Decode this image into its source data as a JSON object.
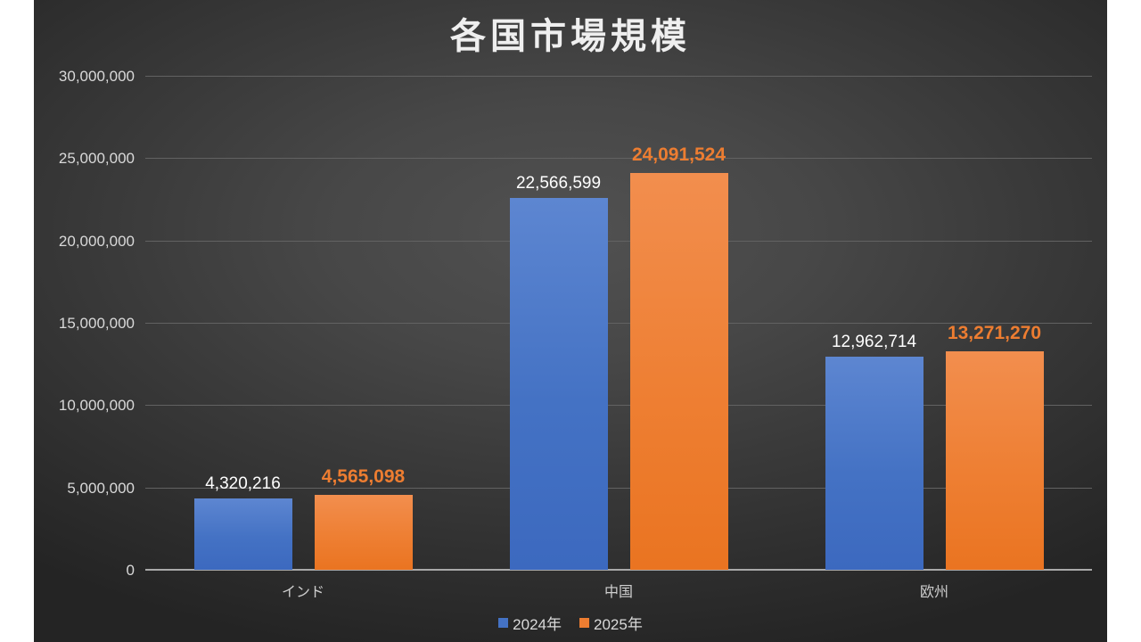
{
  "chart_data": {
    "type": "bar",
    "title": "各国市場規模",
    "categories": [
      "インド",
      "中国",
      "欧州"
    ],
    "series": [
      {
        "name": "2024年",
        "values": [
          4320216,
          22566599,
          12962714
        ],
        "value_labels": [
          "4,320,216",
          "22,566,599",
          "12,962,714"
        ],
        "color": "#4472c4",
        "label_color": "#ffffff"
      },
      {
        "name": "2025年",
        "values": [
          4565098,
          24091524,
          13271270
        ],
        "value_labels": [
          "4,565,098",
          "24,091,524",
          "13,271,270"
        ],
        "color": "#ed7d31",
        "label_color": "#ed7d31"
      }
    ],
    "ylim": [
      0,
      30000000
    ],
    "y_tick_step": 5000000,
    "y_tick_labels": [
      "0",
      "5,000,000",
      "10,000,000",
      "15,000,000",
      "20,000,000",
      "25,000,000",
      "30,000,000"
    ],
    "grid": true,
    "legend_position": "bottom",
    "colors": {
      "slide_background": "#ffffff",
      "chart_background_center": "#515151",
      "chart_background_edge": "#242424",
      "gridline": "#626262",
      "axis_line": "#a9a9a9",
      "tick_label": "#d9d9d9",
      "title": "#efefef"
    }
  }
}
